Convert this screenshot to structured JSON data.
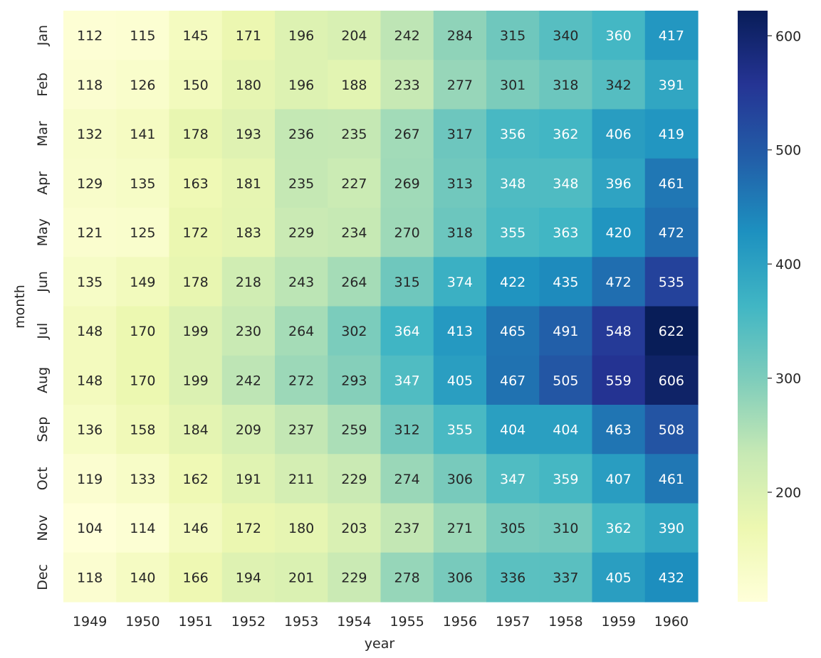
{
  "chart_data": {
    "type": "heatmap",
    "title": "",
    "xlabel": "year",
    "ylabel": "month",
    "x_categories": [
      "1949",
      "1950",
      "1951",
      "1952",
      "1953",
      "1954",
      "1955",
      "1956",
      "1957",
      "1958",
      "1959",
      "1960"
    ],
    "y_categories": [
      "Jan",
      "Feb",
      "Mar",
      "Apr",
      "May",
      "Jun",
      "Jul",
      "Aug",
      "Sep",
      "Oct",
      "Nov",
      "Dec"
    ],
    "values": [
      [
        112,
        115,
        145,
        171,
        196,
        204,
        242,
        284,
        315,
        340,
        360,
        417
      ],
      [
        118,
        126,
        150,
        180,
        196,
        188,
        233,
        277,
        301,
        318,
        342,
        391
      ],
      [
        132,
        141,
        178,
        193,
        236,
        235,
        267,
        317,
        356,
        362,
        406,
        419
      ],
      [
        129,
        135,
        163,
        181,
        235,
        227,
        269,
        313,
        348,
        348,
        396,
        461
      ],
      [
        121,
        125,
        172,
        183,
        229,
        234,
        270,
        318,
        355,
        363,
        420,
        472
      ],
      [
        135,
        149,
        178,
        218,
        243,
        264,
        315,
        374,
        422,
        435,
        472,
        535
      ],
      [
        148,
        170,
        199,
        230,
        264,
        302,
        364,
        413,
        465,
        491,
        548,
        622
      ],
      [
        148,
        170,
        199,
        242,
        272,
        293,
        347,
        405,
        467,
        505,
        559,
        606
      ],
      [
        136,
        158,
        184,
        209,
        237,
        259,
        312,
        355,
        404,
        404,
        463,
        508
      ],
      [
        119,
        133,
        162,
        191,
        211,
        229,
        274,
        306,
        347,
        359,
        407,
        461
      ],
      [
        104,
        114,
        146,
        172,
        180,
        203,
        237,
        271,
        305,
        310,
        362,
        390
      ],
      [
        118,
        140,
        166,
        194,
        201,
        229,
        278,
        306,
        336,
        337,
        405,
        432
      ]
    ],
    "colormap": "YlGnBu",
    "colorbar": {
      "min": 104,
      "max": 622,
      "ticks": [
        200,
        300,
        400,
        500,
        600
      ],
      "tick_labels": [
        "200",
        "300",
        "400",
        "500",
        "600"
      ]
    },
    "annotated": true,
    "grid": false,
    "legend": "colorbar-right"
  }
}
